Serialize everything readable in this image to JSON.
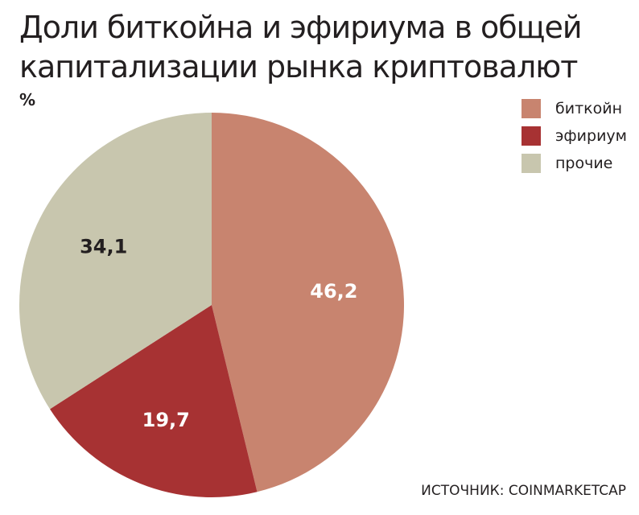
{
  "chart_data": {
    "type": "pie",
    "title_lines": [
      "Доли биткойна и эфириума в общей",
      "капитализации рынка криптовалют"
    ],
    "unit": "%",
    "slices": [
      {
        "name": "биткойн",
        "value": 46.2,
        "label": "46,2",
        "color": "#c8846f",
        "label_color": "#ffffff"
      },
      {
        "name": "эфириум",
        "value": 19.7,
        "label": "19,7",
        "color": "#a73233",
        "label_color": "#ffffff"
      },
      {
        "name": "прочие",
        "value": 34.1,
        "label": "34,1",
        "color": "#c8c6ae",
        "label_color": "#231f20"
      }
    ],
    "legend_position": "top-right"
  },
  "source": "ИСТОЧНИК: COINMARKETCAP"
}
